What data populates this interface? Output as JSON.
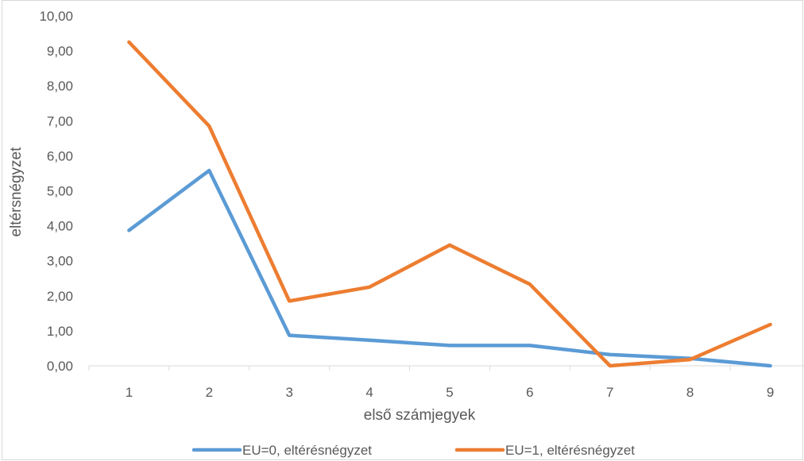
{
  "chart_data": {
    "type": "line",
    "title": "",
    "xlabel": "első számjegyek",
    "ylabel": "eltérsnégyzet",
    "categories": [
      "1",
      "2",
      "3",
      "4",
      "5",
      "6",
      "7",
      "8",
      "9"
    ],
    "y_tick_labels": [
      "0,00",
      "1,00",
      "2,00",
      "3,00",
      "4,00",
      "5,00",
      "6,00",
      "7,00",
      "8,00",
      "9,00",
      "10,00"
    ],
    "ylim": [
      0,
      10
    ],
    "grid": false,
    "legend_position": "bottom",
    "series": [
      {
        "name": "EU=0, eltérésnégyzet",
        "color": "#5B9BD5",
        "values": [
          3.87,
          5.58,
          0.87,
          0.73,
          0.58,
          0.58,
          0.32,
          0.21,
          0.0
        ]
      },
      {
        "name": "EU=1, eltérésnégyzet",
        "color": "#ED7D31",
        "values": [
          9.25,
          6.85,
          1.85,
          2.25,
          3.45,
          2.33,
          0.0,
          0.18,
          1.18
        ]
      }
    ]
  }
}
